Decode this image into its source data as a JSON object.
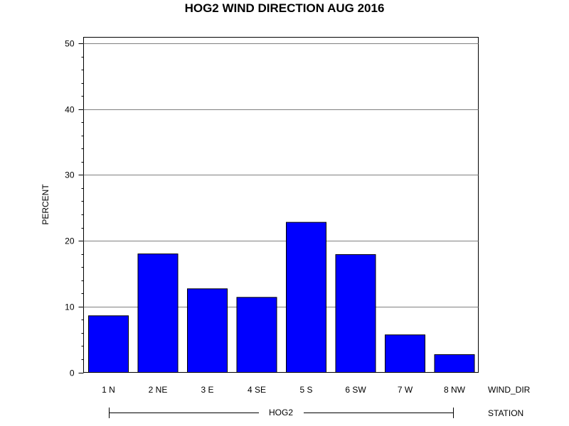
{
  "chart_data": {
    "type": "bar",
    "title": "HOG2 WIND DIRECTION AUG 2016",
    "ylabel": "PERCENT",
    "xlabel": "WIND_DIR",
    "group_axis_label": "STATION",
    "group_label": "HOG2",
    "categories": [
      "1 N",
      "2 NE",
      "3 E",
      "4 SE",
      "5 S",
      "6 SW",
      "7 W",
      "8 NW"
    ],
    "values": [
      8.6,
      18.0,
      12.7,
      11.4,
      22.8,
      17.9,
      5.7,
      2.7
    ],
    "ylim": [
      0,
      51
    ],
    "yticks": [
      0,
      10,
      20,
      30,
      40,
      50
    ],
    "ytick_labels": [
      "0",
      "10",
      "20",
      "30",
      "40",
      "50"
    ],
    "grid": true,
    "bar_color": "#0000ff",
    "bar_edge_color": "#000000"
  }
}
